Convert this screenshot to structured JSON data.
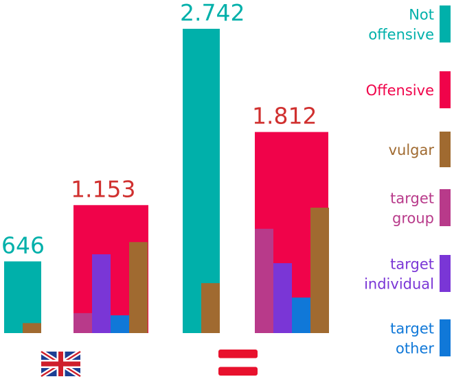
{
  "chart_data": {
    "type": "bar",
    "title": "",
    "xlabel": "",
    "ylabel": "",
    "ylim": [
      0,
      2742
    ],
    "grid": false,
    "legend_position": "right",
    "groups": [
      {
        "flag": "uk-us-flag",
        "columns": [
          {
            "category": "Not offensive",
            "value": 646,
            "value_label": "646",
            "label_color": "#00b0aa",
            "sub_bars": [
              {
                "category": "vulgar",
                "value": 90
              }
            ]
          },
          {
            "category": "Offensive",
            "value": 1153,
            "value_label": "1.153",
            "label_color": "#d0302f",
            "sub_bars": [
              {
                "category": "target group",
                "value": 180
              },
              {
                "category": "target individual",
                "value": 710
              },
              {
                "category": "target other",
                "value": 160
              },
              {
                "category": "vulgar",
                "value": 820
              }
            ]
          }
        ]
      },
      {
        "flag": "austria-flag",
        "columns": [
          {
            "category": "Not offensive",
            "value": 2742,
            "value_label": "2.742",
            "label_color": "#00b0aa",
            "sub_bars": [
              {
                "category": "vulgar",
                "value": 450
              }
            ]
          },
          {
            "category": "Offensive",
            "value": 1812,
            "value_label": "1.812",
            "label_color": "#d0302f",
            "sub_bars": [
              {
                "category": "target group",
                "value": 940
              },
              {
                "category": "target individual",
                "value": 630
              },
              {
                "category": "target other",
                "value": 320
              },
              {
                "category": "vulgar",
                "value": 1130
              }
            ]
          }
        ]
      }
    ],
    "legend": [
      {
        "category": "Not offensive",
        "lines": [
          "Not",
          "offensive"
        ],
        "color": "#00b0aa",
        "text_color": "#00b0aa"
      },
      {
        "category": "Offensive",
        "lines": [
          "Offensive"
        ],
        "color": "#f0034a",
        "text_color": "#f0034a"
      },
      {
        "category": "vulgar",
        "lines": [
          "vulgar"
        ],
        "color": "#a06a30",
        "text_color": "#a06a30"
      },
      {
        "category": "target group",
        "lines": [
          "target",
          "group"
        ],
        "color": "#b83a8a",
        "text_color": "#b83a8a"
      },
      {
        "category": "target individual",
        "lines": [
          "target",
          "individual"
        ],
        "color": "#7a36d6",
        "text_color": "#7a36d6"
      },
      {
        "category": "target other",
        "lines": [
          "target",
          "other"
        ],
        "color": "#1078d8",
        "text_color": "#1078d8"
      }
    ]
  }
}
